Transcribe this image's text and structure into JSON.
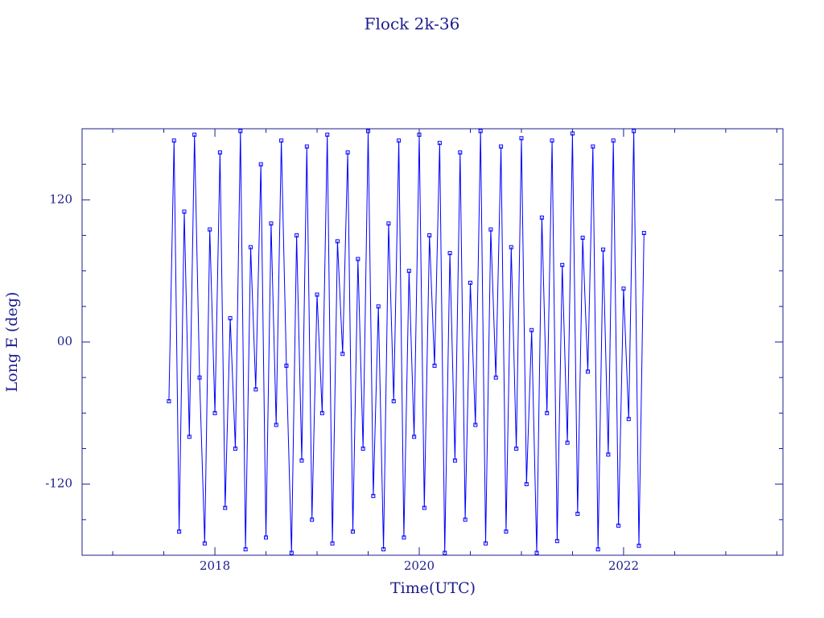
{
  "chart_data": {
    "type": "line",
    "title": "Flock 2k-36",
    "x_label": "Time(UTC)",
    "y_label": "Long E (deg)",
    "color": "#0000ff",
    "axis_color": "#1c1c8c",
    "markers": true,
    "xlim": [
      2016.7,
      2023.56
    ],
    "xticks": [
      2018,
      2020,
      2022
    ],
    "xminor_ticks": [
      2017,
      2017.5,
      2018.5,
      2019,
      2019.5,
      2020.5,
      2021,
      2021.5,
      2022.5,
      2023,
      2023.5
    ],
    "ylim": [
      -180,
      180
    ],
    "yticks": [
      -120,
      {
        "value": 0,
        "label": "00"
      },
      120
    ],
    "yminor_ticks": [
      -150,
      -90,
      -60,
      -30,
      30,
      60,
      90,
      150
    ],
    "x": [
      2017.55,
      2017.6,
      2017.65,
      2017.7,
      2017.75,
      2017.8,
      2017.85,
      2017.9,
      2017.95,
      2018.0,
      2018.05,
      2018.1,
      2018.15,
      2018.2,
      2018.25,
      2018.3,
      2018.35,
      2018.4,
      2018.45,
      2018.5,
      2018.55,
      2018.6,
      2018.65,
      2018.7,
      2018.75,
      2018.8,
      2018.85,
      2018.9,
      2018.95,
      2019.0,
      2019.05,
      2019.1,
      2019.15,
      2019.2,
      2019.25,
      2019.3,
      2019.35,
      2019.4,
      2019.45,
      2019.5,
      2019.55,
      2019.6,
      2019.65,
      2019.7,
      2019.75,
      2019.8,
      2019.85,
      2019.9,
      2019.95,
      2020.0,
      2020.05,
      2020.1,
      2020.15,
      2020.2,
      2020.25,
      2020.3,
      2020.35,
      2020.4,
      2020.45,
      2020.5,
      2020.55,
      2020.6,
      2020.65,
      2020.7,
      2020.75,
      2020.8,
      2020.85,
      2020.9,
      2020.95,
      2021.0,
      2021.05,
      2021.1,
      2021.15,
      2021.2,
      2021.25,
      2021.3,
      2021.35,
      2021.4,
      2021.45,
      2021.5,
      2021.55,
      2021.6,
      2021.65,
      2021.7,
      2021.75,
      2021.8,
      2021.85,
      2021.9,
      2021.95,
      2022.0,
      2022.05,
      2022.1,
      2022.15,
      2022.2
    ],
    "values": [
      -50,
      170,
      -160,
      110,
      -80,
      175,
      -30,
      -170,
      95,
      -60,
      160,
      -140,
      20,
      -90,
      178,
      -175,
      80,
      -40,
      150,
      -165,
      100,
      -70,
      170,
      -20,
      -178,
      90,
      -100,
      165,
      -150,
      40,
      -60,
      175,
      -170,
      85,
      -10,
      160,
      -160,
      70,
      -90,
      178,
      -130,
      30,
      -175,
      100,
      -50,
      170,
      -165,
      60,
      -80,
      175,
      -140,
      90,
      -20,
      168,
      -178,
      75,
      -100,
      160,
      -150,
      50,
      -70,
      178,
      -170,
      95,
      -30,
      165,
      -160,
      80,
      -90,
      172,
      -120,
      10,
      -178,
      105,
      -60,
      170,
      -168,
      65,
      -85,
      176,
      -145,
      88,
      -25,
      165,
      -175,
      78,
      -95,
      170,
      -155,
      45,
      -65,
      178,
      -172,
      92
    ]
  }
}
